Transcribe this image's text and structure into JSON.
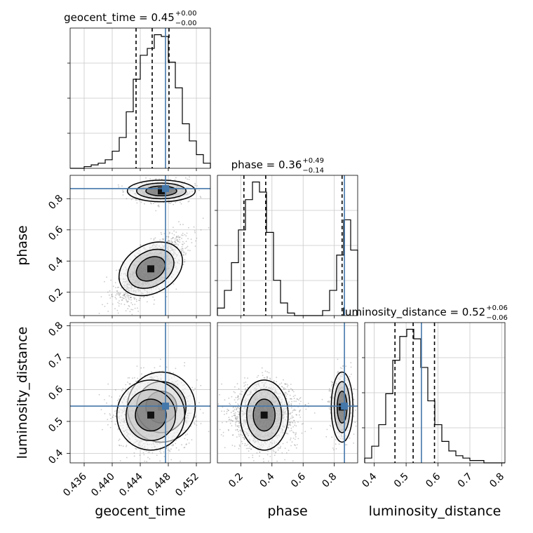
{
  "chart_data": {
    "type": "corner",
    "parameters": [
      "geocent_time",
      "phase",
      "luminosity_distance"
    ],
    "titles": [
      {
        "param": "geocent_time",
        "main": "geocent_time = 0.45",
        "sup": "+0.00",
        "sub": "−0.00"
      },
      {
        "param": "phase",
        "main": "phase = 0.36",
        "sup": "+0.49",
        "sub": "−0.14"
      },
      {
        "param": "luminosity_distance",
        "main": "luminosity_distance = 0.52",
        "sup": "+0.06",
        "sub": "−0.06"
      }
    ],
    "axes": {
      "geocent_time": {
        "range": [
          0.434,
          0.454
        ],
        "ticks": [
          0.436,
          0.44,
          0.444,
          0.448,
          0.452
        ],
        "tick_labels": [
          "0.436",
          "0.440",
          "0.444",
          "0.448",
          "0.452"
        ]
      },
      "phase": {
        "range": [
          0.05,
          0.95
        ],
        "ticks": [
          0.2,
          0.4,
          0.6,
          0.8
        ],
        "tick_labels": [
          "0.2",
          "0.4",
          "0.6",
          "0.8"
        ]
      },
      "luminosity_distance": {
        "range": [
          0.37,
          0.81
        ],
        "ticks": [
          0.4,
          0.5,
          0.6,
          0.7,
          0.8
        ],
        "tick_labels": [
          "0.4",
          "0.5",
          "0.6",
          "0.7",
          "0.8"
        ]
      }
    },
    "injection": {
      "geocent_time": 0.4476,
      "phase": 0.865,
      "luminosity_distance": 0.548
    },
    "quantiles": {
      "geocent_time": [
        0.4434,
        0.4457,
        0.4481
      ],
      "phase": [
        0.22,
        0.36,
        0.85
      ],
      "luminosity_distance": [
        0.465,
        0.522,
        0.589
      ]
    },
    "histograms": {
      "geocent_time": [
        0,
        0,
        1,
        2,
        3,
        5,
        10,
        18,
        33,
        52,
        66,
        70,
        78,
        77,
        62,
        47,
        26,
        16,
        8,
        3
      ],
      "phase": [
        3,
        10,
        21,
        34,
        46,
        53,
        49,
        33,
        14,
        5,
        1,
        0,
        0,
        0,
        0,
        2,
        10,
        24,
        38,
        26
      ],
      "luminosity_distance": [
        2,
        7,
        16,
        29,
        43,
        53,
        56,
        52,
        40,
        26,
        16,
        9,
        5,
        3,
        2,
        1,
        1,
        0,
        0,
        0
      ]
    },
    "modes_2d": [
      {
        "geocent_time": 0.447,
        "phase": 0.85,
        "luminosity_distance": 0.545,
        "weight": 0.25
      },
      {
        "geocent_time": 0.4455,
        "phase": 0.35,
        "luminosity_distance": 0.52,
        "weight": 0.75
      }
    ],
    "colors": {
      "injection": "#4477aa",
      "hist": "#000000",
      "grid": "#c8c8c8"
    },
    "grid": true
  }
}
